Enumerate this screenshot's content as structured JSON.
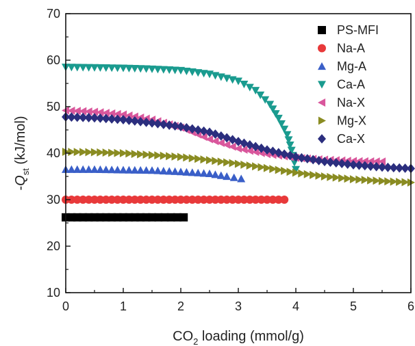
{
  "chart_data": {
    "type": "scatter",
    "xlabel": {
      "main": "CO",
      "sub": "2",
      "rest": " loading (mmol/g)"
    },
    "ylabel": {
      "pre": "-",
      "main": "Q",
      "sub": "st",
      "rest": " (kJ/mol)"
    },
    "xlim": [
      0,
      6
    ],
    "ylim": [
      10,
      70
    ],
    "xticks": [
      "0",
      "1",
      "2",
      "3",
      "4",
      "5",
      "6"
    ],
    "yticks": [
      "10",
      "20",
      "30",
      "40",
      "50",
      "60",
      "70"
    ],
    "grid": false,
    "legend_position": "top-right",
    "series": [
      {
        "name": "PS-MFI",
        "marker": "square",
        "color": "#000000",
        "points": [
          [
            0.0,
            26.2
          ],
          [
            0.5,
            26.2
          ],
          [
            1.0,
            26.2
          ],
          [
            1.5,
            26.2
          ],
          [
            2.05,
            26.2
          ]
        ]
      },
      {
        "name": "Na-A",
        "marker": "circle",
        "color": "#e8393a",
        "points": [
          [
            0.0,
            30.0
          ],
          [
            0.5,
            30.0
          ],
          [
            1.0,
            30.0
          ],
          [
            1.5,
            30.0
          ],
          [
            2.0,
            30.0
          ],
          [
            2.5,
            30.0
          ],
          [
            3.0,
            30.0
          ],
          [
            3.5,
            30.0
          ],
          [
            3.8,
            30.0
          ]
        ]
      },
      {
        "name": "Mg-A",
        "marker": "triangle-up",
        "color": "#3a5fc8",
        "points": [
          [
            0.0,
            36.5
          ],
          [
            0.5,
            36.5
          ],
          [
            1.0,
            36.4
          ],
          [
            1.5,
            36.3
          ],
          [
            2.0,
            36.0
          ],
          [
            2.5,
            35.6
          ],
          [
            2.8,
            35.0
          ],
          [
            3.05,
            34.5
          ]
        ]
      },
      {
        "name": "Ca-A",
        "marker": "triangle-down",
        "color": "#1a9b8f",
        "points": [
          [
            0.0,
            58.5
          ],
          [
            0.5,
            58.4
          ],
          [
            1.0,
            58.3
          ],
          [
            1.5,
            58.1
          ],
          [
            2.0,
            57.8
          ],
          [
            2.5,
            57.0
          ],
          [
            3.0,
            55.5
          ],
          [
            3.3,
            53.5
          ],
          [
            3.55,
            50.5
          ],
          [
            3.7,
            47.5
          ],
          [
            3.85,
            44.0
          ],
          [
            3.95,
            39.5
          ],
          [
            4.0,
            36.5
          ]
        ]
      },
      {
        "name": "Na-X",
        "marker": "triangle-left",
        "color": "#d9579c",
        "points": [
          [
            0.0,
            49.2
          ],
          [
            0.5,
            48.9
          ],
          [
            1.0,
            48.3
          ],
          [
            1.5,
            47.2
          ],
          [
            2.0,
            45.5
          ],
          [
            2.5,
            43.0
          ],
          [
            3.0,
            41.0
          ],
          [
            3.5,
            39.8
          ],
          [
            4.0,
            39.0
          ],
          [
            4.5,
            38.6
          ],
          [
            5.0,
            38.3
          ],
          [
            5.5,
            38.2
          ]
        ]
      },
      {
        "name": "Mg-X",
        "marker": "triangle-right",
        "color": "#8a8c22",
        "points": [
          [
            0.0,
            40.3
          ],
          [
            0.5,
            40.2
          ],
          [
            1.0,
            40.0
          ],
          [
            1.5,
            39.6
          ],
          [
            2.0,
            39.2
          ],
          [
            2.5,
            38.5
          ],
          [
            3.0,
            37.7
          ],
          [
            3.5,
            36.8
          ],
          [
            4.0,
            35.8
          ],
          [
            4.5,
            35.0
          ],
          [
            5.0,
            34.4
          ],
          [
            5.5,
            34.0
          ],
          [
            6.0,
            33.7
          ]
        ]
      },
      {
        "name": "Ca-X",
        "marker": "diamond",
        "color": "#2b2e7e",
        "points": [
          [
            0.0,
            47.8
          ],
          [
            0.5,
            47.6
          ],
          [
            1.0,
            47.2
          ],
          [
            1.5,
            46.5
          ],
          [
            2.0,
            45.7
          ],
          [
            2.5,
            44.5
          ],
          [
            3.0,
            42.5
          ],
          [
            3.5,
            40.7
          ],
          [
            4.0,
            39.2
          ],
          [
            4.5,
            38.2
          ],
          [
            5.0,
            37.5
          ],
          [
            5.5,
            37.0
          ],
          [
            6.0,
            36.7
          ]
        ]
      }
    ]
  }
}
